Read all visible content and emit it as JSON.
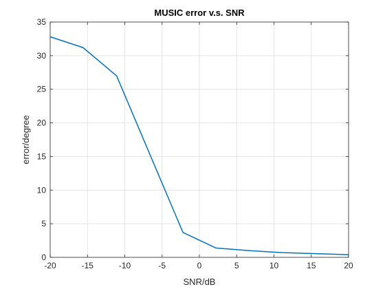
{
  "chart_data": {
    "type": "line",
    "title": "MUSIC error v.s. SNR",
    "xlabel": "SNR/dB",
    "ylabel": "error/degree",
    "xlim": [
      -20,
      20
    ],
    "ylim": [
      0,
      35
    ],
    "xticks": [
      -20,
      -15,
      -10,
      -5,
      0,
      5,
      10,
      15,
      20
    ],
    "yticks": [
      0,
      5,
      10,
      15,
      20,
      25,
      30,
      35
    ],
    "grid": true,
    "series": [
      {
        "color": "#0072bd",
        "x": [
          -20,
          -15.6,
          -11.1,
          -2.2,
          2.2,
          6.7,
          11.1,
          15.6,
          20
        ],
        "y": [
          32.8,
          31.2,
          27.0,
          3.7,
          1.4,
          1.0,
          0.7,
          0.55,
          0.4
        ]
      }
    ]
  }
}
